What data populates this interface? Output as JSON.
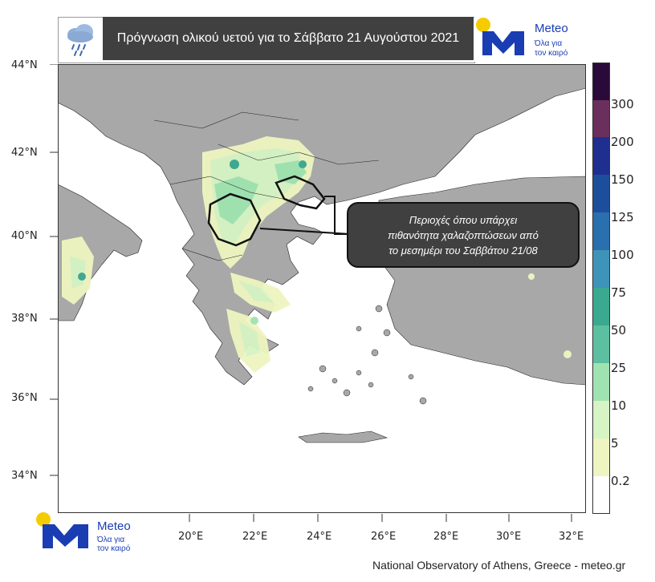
{
  "title": "Πρόγνωση ολικού υετού για το Σάββατο 21 Αυγούστου 2021",
  "logo": {
    "name": "Meteo",
    "tagline_line1": "Όλα για",
    "tagline_line2": "τον καιρό"
  },
  "latitude_labels": [
    "44°N",
    "42°N",
    "40°N",
    "38°N",
    "36°N",
    "34°N"
  ],
  "longitude_labels": [
    "20°E",
    "22°E",
    "24°E",
    "26°E",
    "28°E",
    "30°E",
    "32°E"
  ],
  "colorbar": {
    "labels": [
      "300",
      "200",
      "150",
      "125",
      "100",
      "75",
      "50",
      "25",
      "10",
      "5",
      "0.2"
    ],
    "colors": [
      "#2a0a3a",
      "#6b2f5e",
      "#1f2f8f",
      "#1c4e9c",
      "#2a6fae",
      "#3d94b8",
      "#3aa98f",
      "#5cc0a0",
      "#9fe3b0",
      "#d6f4c4",
      "#eef5c0",
      "#ffffff"
    ]
  },
  "annotation": {
    "line1": "Περιοχές όπου υπάρχει",
    "line2": "πιθανότητα χαλαζοπτώσεων από",
    "line3": "το μεσημέρι του Σαββάτου 21/08"
  },
  "footer": "National Observatory of Athens, Greece - meteo.gr",
  "icons": [
    "rain-cloud-icon",
    "meteo-logo-icon"
  ],
  "colors": {
    "land": "#a8a8a8",
    "sea": "#ffffff",
    "banner": "#404040",
    "brand_blue": "#1a3db3",
    "brand_yellow": "#f5cc00"
  }
}
